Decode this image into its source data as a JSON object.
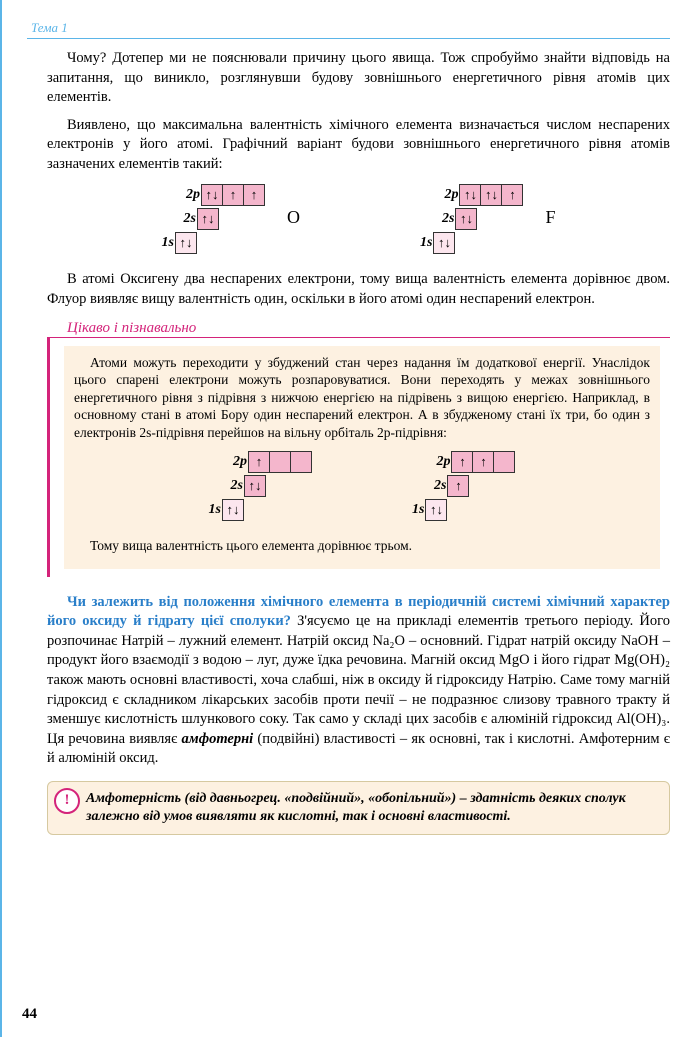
{
  "page": {
    "topic_label": "Тема 1",
    "page_number": "44"
  },
  "paragraphs": {
    "p1": "Чому? Дотепер ми не пояснювали причину цього явища. Тож спробуймо знайти відповідь на запитання, що виникло, розглянувши будову зовнішнього енергетичного рівня атомів цих елементів.",
    "p2": "Виявлено, що максимальна валентність хімічного елемента визначається числом неспарених електронів у його атомі. Графічний варіант будови зовнішнього енергетичного рівня атомів зазначених елементів такий:",
    "p3": "В атомі Оксигену два неспарених електрони, тому вища валентність елемента дорівнює двом. Флуор виявляє вищу валентність один, оскільки в його атомі один неспарений електрон.",
    "p4_question": "Чи залежить від положення хімічного елемента в періодичній системі хімічний характер його оксиду й гідрату цієї сполуки?",
    "p4_rest": " З'ясуємо це на прикладі елементів третього періоду. Його розпочинає Натрій – лужний елемент. Натрій оксид Na₂O – основний. Гідрат натрій оксиду NaOH – продукт його взаємодії з водою – луг, дуже їдка речовина. Магній оксид MgO і його гідрат Mg(OH)₂ також мають основні властивості, хоча слабші, ніж в оксиду й гідроксиду Натрію. Саме тому магній гідроксид є складником лікарських засобів проти печії – не подразнює слизову травного тракту й зменшує кислотність шлункового соку. Так само у складі цих засобів є алюміній гідроксид Al(OH)₃. Ця речовина виявляє ",
    "p4_emph": "амфотерні",
    "p4_tail": " (подвійні) властивості – як основні, так і кислотні. Амфотерним є й алюміній оксид."
  },
  "interesting": {
    "title": "Цікаво і пізнавально",
    "body1": "Атоми можуть переходити у збуджений стан через надання їм додаткової енергії. Унаслідок цього спарені електрони можуть розпаровуватися. Вони переходять у межах зовнішнього енергетичного рівня з підрівня з нижчою енергією на підрівень з вищою енергією. Наприклад, в основному стані в атомі Бору один неспарений електрон. А в збудженому стані їх три, бо один з електронів 2s-підрівня перейшов на вільну орбіталь 2p-підрівня:",
    "body2": "Тому вища валентність цього елемента дорівнює трьом."
  },
  "definition": {
    "text": "Амфотерність (від давньогрец. «подвійний», «обопільний») – здатність деяких сполук залежно від умов виявляти як кислотні, так і основні властивості.",
    "icon": "!"
  },
  "orbitals": {
    "labels": {
      "s1": "1s",
      "s2": "2s",
      "p2": "2p"
    },
    "elements": {
      "O": "O",
      "F": "F"
    },
    "arrows": {
      "up": "↑",
      "down": "↓",
      "updown": "↑↓"
    },
    "oxygen": {
      "p2": [
        "↑↓",
        "↑",
        "↑"
      ],
      "s2": [
        "↑↓"
      ],
      "s1": [
        "↑↓"
      ]
    },
    "fluorine": {
      "p2": [
        "↑↓",
        "↑↓",
        "↑"
      ],
      "s2": [
        "↑↓"
      ],
      "s1": [
        "↑↓"
      ]
    },
    "boron_ground": {
      "p2": [
        "↑",
        "",
        ""
      ],
      "s2": [
        "↑↓"
      ],
      "s1": [
        "↑↓"
      ]
    },
    "boron_excited": {
      "p2": [
        "↑",
        "↑",
        ""
      ],
      "s2": [
        "↑"
      ],
      "s1": [
        "↑↓"
      ]
    }
  },
  "colors": {
    "accent_blue": "#5bb5e8",
    "magenta": "#d4237a",
    "box_bg": "#fdf1e1",
    "pink_cell": "#f4b6cc",
    "light_pink_cell": "#fce6ee",
    "link_blue": "#2a7fc9"
  }
}
